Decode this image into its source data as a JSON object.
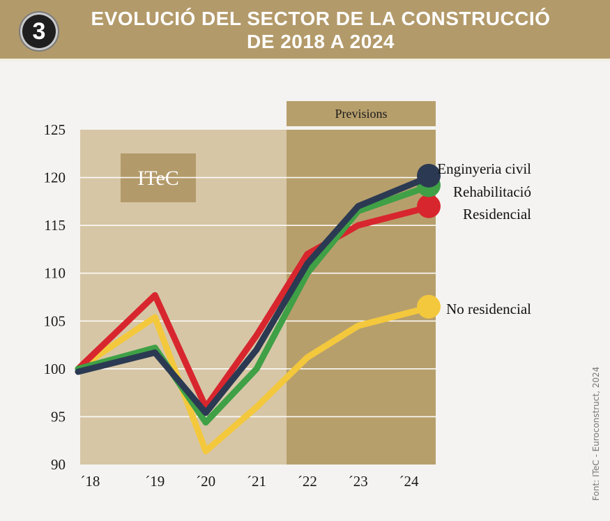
{
  "header": {
    "badge": "3",
    "title_line1": "EVOLUCIÓ DEL SECTOR DE LA CONSTRUCCIÓ",
    "title_line2": "DE 2018 A 2024"
  },
  "logo_text": "ITeC",
  "forecast_label": "Previsions",
  "source": "Font: ITeC - Euroconstruct, 2024",
  "colors": {
    "header_bg": "#b39a6a",
    "hist_bg": "#d6c6a6",
    "forecast_bg": "#b79f6c",
    "logo_bg": "#b39a6a"
  },
  "chart_data": {
    "type": "line",
    "categories": [
      "´18",
      "´19",
      "´20",
      "´21",
      "´22",
      "´23",
      "´24"
    ],
    "forecast_start_index": 4,
    "ylim": [
      90,
      125
    ],
    "yticks": [
      90,
      95,
      100,
      105,
      110,
      115,
      120,
      125
    ],
    "grid": true,
    "series": [
      {
        "name": "Enginyeria civil",
        "color": "#2b3a52",
        "values": [
          99.7,
          101.7,
          95.4,
          102.0,
          111.0,
          117.0,
          120.2
        ]
      },
      {
        "name": "Rehabilitació",
        "color": "#3fa046",
        "values": [
          100.0,
          102.2,
          94.4,
          100.0,
          110.0,
          116.5,
          119.2
        ]
      },
      {
        "name": "Residencial",
        "color": "#d8262e",
        "values": [
          100.0,
          107.7,
          96.0,
          103.5,
          112.0,
          115.0,
          117.0
        ]
      },
      {
        "name": "No residencial",
        "color": "#f4c83c",
        "values": [
          100.0,
          105.4,
          91.4,
          96.0,
          101.2,
          104.5,
          106.5
        ]
      }
    ]
  }
}
